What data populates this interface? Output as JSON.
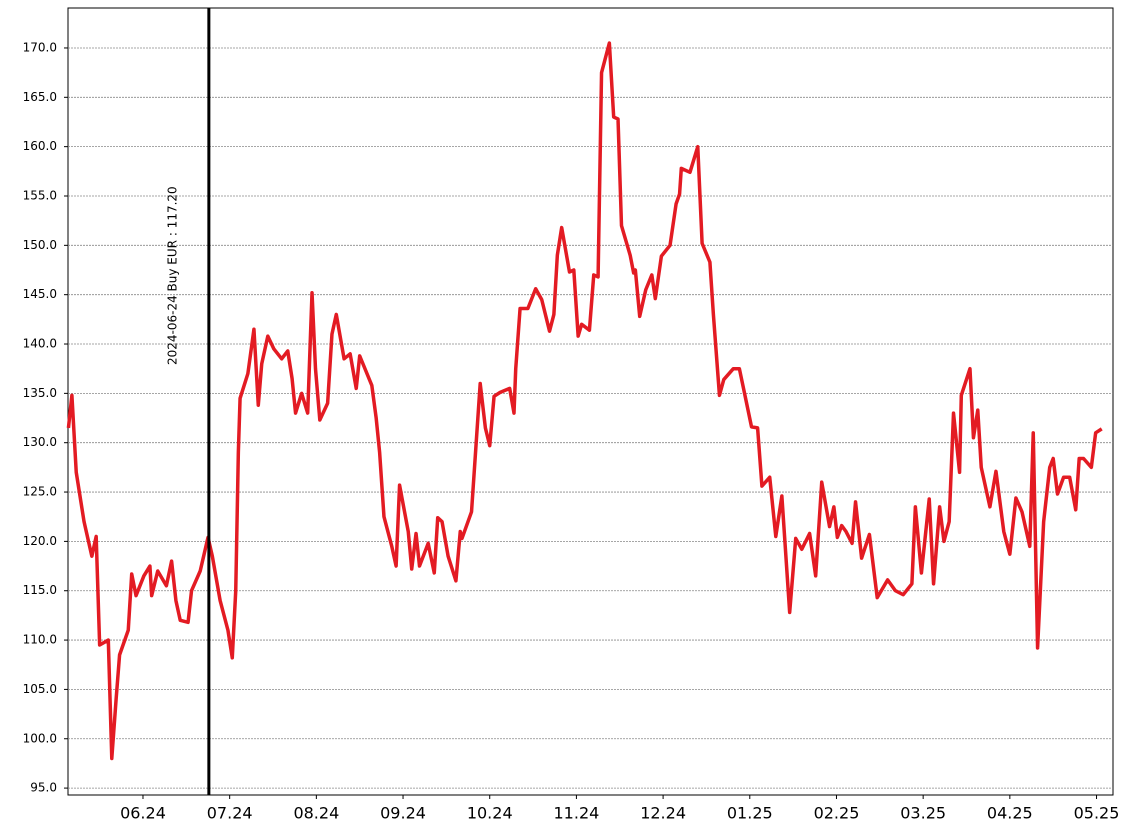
{
  "chart_data": {
    "type": "line",
    "color": "#e31b23",
    "grid": true,
    "xlim": [
      5.135,
      17.19
    ],
    "ylim": [
      94.3,
      174.05
    ],
    "xticks": [
      {
        "value": 6,
        "label": "06.24"
      },
      {
        "value": 7,
        "label": "07.24"
      },
      {
        "value": 8,
        "label": "08.24"
      },
      {
        "value": 9,
        "label": "09.24"
      },
      {
        "value": 10,
        "label": "10.24"
      },
      {
        "value": 11,
        "label": "11.24"
      },
      {
        "value": 12,
        "label": "12.24"
      },
      {
        "value": 13,
        "label": "01.25"
      },
      {
        "value": 14,
        "label": "02.25"
      },
      {
        "value": 15,
        "label": "03.25"
      },
      {
        "value": 16,
        "label": "04.25"
      },
      {
        "value": 17,
        "label": "05.25"
      }
    ],
    "yticks": [
      {
        "value": 95,
        "label": "95.0"
      },
      {
        "value": 100,
        "label": "100.0"
      },
      {
        "value": 105,
        "label": "105.0"
      },
      {
        "value": 110,
        "label": "110.0"
      },
      {
        "value": 115,
        "label": "115.0"
      },
      {
        "value": 120,
        "label": "120.0"
      },
      {
        "value": 125,
        "label": "125.0"
      },
      {
        "value": 130,
        "label": "130.0"
      },
      {
        "value": 135,
        "label": "135.0"
      },
      {
        "value": 140,
        "label": "140.0"
      },
      {
        "value": 145,
        "label": "145.0"
      },
      {
        "value": 150,
        "label": "150.0"
      },
      {
        "value": 155,
        "label": "155.0"
      },
      {
        "value": 160,
        "label": "160.0"
      },
      {
        "value": 165,
        "label": "165.0"
      },
      {
        "value": 170,
        "label": "170.0"
      }
    ],
    "marker": {
      "x": 6.76,
      "label": "2024-06-24 Buy EUR : 117.20"
    },
    "x": [
      5.14,
      5.18,
      5.23,
      5.32,
      5.41,
      5.46,
      5.5,
      5.6,
      5.64,
      5.69,
      5.73,
      5.83,
      5.87,
      5.92,
      6.01,
      6.08,
      6.1,
      6.17,
      6.27,
      6.33,
      6.38,
      6.43,
      6.52,
      6.56,
      6.66,
      6.75,
      6.8,
      6.89,
      6.98,
      7.03,
      7.07,
      7.1,
      7.12,
      7.21,
      7.28,
      7.33,
      7.37,
      7.44,
      7.51,
      7.6,
      7.67,
      7.72,
      7.76,
      7.83,
      7.9,
      7.95,
      7.99,
      8.04,
      8.13,
      8.18,
      8.23,
      8.32,
      8.39,
      8.46,
      8.5,
      8.64,
      8.69,
      8.73,
      8.78,
      8.87,
      8.92,
      8.96,
      9.06,
      9.1,
      9.15,
      9.19,
      9.29,
      9.36,
      9.4,
      9.45,
      9.52,
      9.61,
      9.66,
      9.68,
      9.79,
      9.84,
      9.89,
      9.95,
      10.0,
      10.05,
      10.12,
      10.23,
      10.28,
      10.3,
      10.35,
      10.44,
      10.53,
      10.6,
      10.69,
      10.74,
      10.78,
      10.83,
      10.92,
      10.97,
      11.02,
      11.06,
      11.15,
      11.2,
      11.25,
      11.29,
      11.38,
      11.43,
      11.48,
      11.52,
      11.62,
      11.66,
      11.68,
      11.73,
      11.8,
      11.87,
      11.91,
      11.98,
      12.08,
      12.15,
      12.19,
      12.21,
      12.31,
      12.4,
      12.45,
      12.54,
      12.58,
      12.65,
      12.7,
      12.81,
      12.88,
      12.93,
      13.02,
      13.09,
      13.14,
      13.23,
      13.3,
      13.37,
      13.46,
      13.53,
      13.6,
      13.69,
      13.76,
      13.83,
      13.92,
      13.97,
      14.01,
      14.06,
      14.11,
      14.18,
      14.22,
      14.29,
      14.38,
      14.47,
      14.59,
      14.68,
      14.77,
      14.87,
      14.91,
      14.98,
      15.07,
      15.12,
      15.19,
      15.24,
      15.3,
      15.35,
      15.42,
      15.44,
      15.54,
      15.58,
      15.63,
      15.67,
      15.77,
      15.84,
      15.93,
      16.0,
      16.07,
      16.14,
      16.23,
      16.27,
      16.32,
      16.39,
      16.46,
      16.5,
      16.55,
      16.62,
      16.69,
      16.76,
      16.8,
      16.85,
      16.94,
      16.99,
      17.06
    ],
    "values": [
      131.5,
      134.8,
      127,
      122,
      118.5,
      120.5,
      109.5,
      110,
      98,
      104,
      108.5,
      111,
      116.7,
      114.5,
      116.5,
      117.5,
      114.5,
      117,
      115.5,
      118,
      114,
      112,
      111.8,
      115,
      117,
      120.4,
      118.5,
      114,
      111,
      108.2,
      115,
      129,
      134.5,
      137,
      141.5,
      133.8,
      138,
      140.8,
      139.5,
      138.5,
      139.3,
      136.5,
      133,
      135,
      133,
      145.2,
      137.5,
      132.3,
      134,
      141,
      143,
      138.5,
      139,
      135.5,
      138.8,
      135.8,
      132.5,
      129,
      122.5,
      119.5,
      117.5,
      125.7,
      121,
      117.2,
      120.8,
      117.5,
      119.8,
      116.8,
      122.4,
      122,
      118.5,
      116,
      121,
      120.3,
      123,
      129.5,
      136,
      131.5,
      129.7,
      134.7,
      135.1,
      135.5,
      133,
      137.5,
      143.6,
      143.6,
      145.6,
      144.5,
      141.3,
      143,
      149,
      151.8,
      147.3,
      147.5,
      140.8,
      142,
      141.4,
      147,
      146.8,
      167.5,
      170.5,
      163,
      162.8,
      152,
      149,
      147.2,
      147.5,
      142.8,
      145.5,
      147,
      144.6,
      148.9,
      150,
      154.2,
      155.2,
      157.8,
      157.4,
      160,
      150.2,
      148.3,
      143,
      134.8,
      136.4,
      137.5,
      137.5,
      135.4,
      131.6,
      131.5,
      125.6,
      126.5,
      120.5,
      124.6,
      112.8,
      120.3,
      119.2,
      120.8,
      116.5,
      126,
      121.5,
      123.5,
      120.4,
      121.6,
      121,
      119.8,
      124,
      118.3,
      120.7,
      114.3,
      116.1,
      115,
      114.6,
      115.7,
      123.5,
      116.8,
      124.3,
      115.7,
      123.5,
      120,
      122,
      133,
      127,
      134.8,
      137.5,
      130.5,
      133.3,
      127.5,
      123.5,
      127.1,
      121,
      118.7,
      124.4,
      123,
      119.5,
      131,
      109.2,
      122,
      127.5,
      128.4,
      124.8,
      126.5,
      126.5,
      123.2,
      128.4,
      128.4,
      127.5,
      131,
      131.4
    ]
  }
}
